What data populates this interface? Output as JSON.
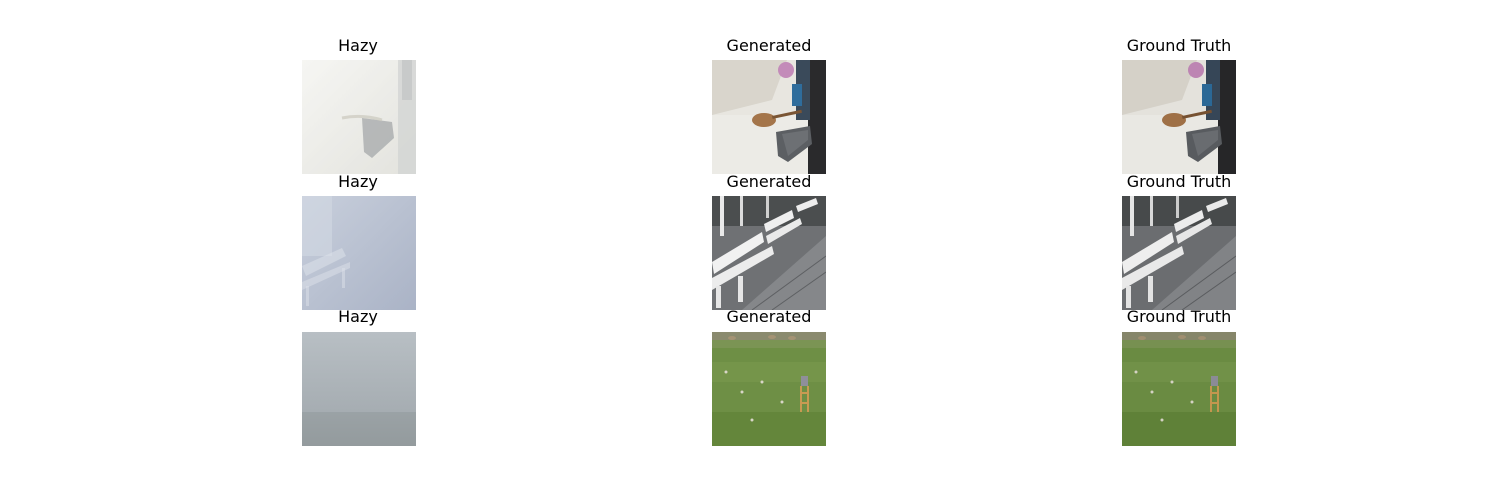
{
  "figure": {
    "rows": [
      {
        "hazy_title": "Hazy",
        "generated_title": "Generated",
        "ground_truth_title": "Ground Truth",
        "scene": "indoor-guitar-chair"
      },
      {
        "hazy_title": "Hazy",
        "generated_title": "Generated",
        "ground_truth_title": "Ground Truth",
        "scene": "white-benches-pavement"
      },
      {
        "hazy_title": "Hazy",
        "generated_title": "Generated",
        "ground_truth_title": "Ground Truth",
        "scene": "grass-field-easel"
      }
    ]
  },
  "colors": {
    "haze_row1": "#e4e4df",
    "haze_row2": "#b9c2d3",
    "haze_row3": "#a9b0b6",
    "grass": "#6e8f45",
    "pavement": "#6f7174",
    "bench": "#f1f1f1"
  }
}
